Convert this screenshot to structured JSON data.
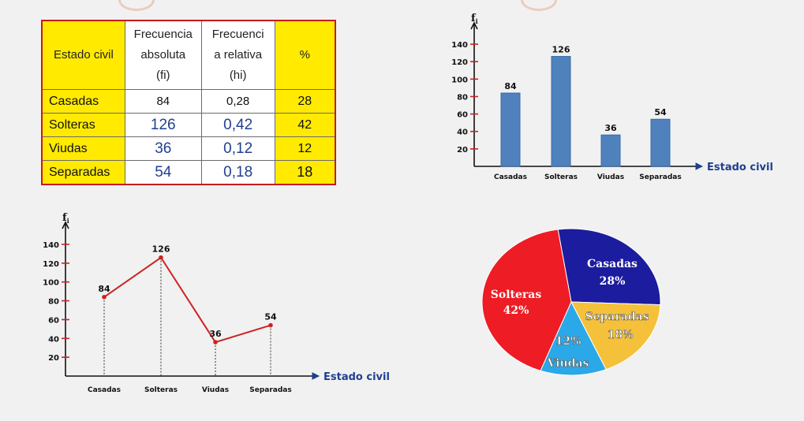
{
  "table": {
    "headers": [
      "Estado civil",
      "Frecuencia absoluta (fi)",
      "Frecuenci a relativa (hi)",
      "%"
    ],
    "header_lines": [
      [
        "Estado civil"
      ],
      [
        "Frecuencia",
        "absoluta",
        "(fi)"
      ],
      [
        "Frecuenci",
        "a relativa",
        "(hi)"
      ],
      [
        "%"
      ]
    ],
    "rows": [
      {
        "estado": "Casadas",
        "fi": "84",
        "hi": "0,28",
        "pct": "28"
      },
      {
        "estado": "Solteras",
        "fi": "126",
        "hi": "0,42",
        "pct": "42"
      },
      {
        "estado": "Viudas",
        "fi": "36",
        "hi": "0,12",
        "pct": "12"
      },
      {
        "estado": "Separadas",
        "fi": "54",
        "hi": "0,18",
        "pct": "18"
      }
    ]
  },
  "chart_data": [
    {
      "type": "bar",
      "categories": [
        "Casadas",
        "Solteras",
        "Viudas",
        "Separadas"
      ],
      "values": [
        84,
        126,
        36,
        54
      ],
      "data_labels": [
        "84",
        "126",
        "36",
        "54"
      ],
      "title": "",
      "xlabel": "Estado civil",
      "ylabel": "fi",
      "ylim": [
        0,
        150
      ],
      "yticks": [
        20,
        40,
        60,
        80,
        100,
        120,
        140
      ],
      "grid": false,
      "color": "#4f81bd"
    },
    {
      "type": "line",
      "categories": [
        "Casadas",
        "Solteras",
        "Viudas",
        "Separadas"
      ],
      "values": [
        84,
        126,
        36,
        54
      ],
      "data_labels": [
        "84",
        "126",
        "36",
        "54"
      ],
      "title": "",
      "xlabel": "Estado civil",
      "ylabel": "fi",
      "ylim": [
        0,
        150
      ],
      "yticks": [
        20,
        40,
        60,
        80,
        100,
        120,
        140
      ],
      "grid": false,
      "color": "#cc2222"
    },
    {
      "type": "pie",
      "slices": [
        {
          "label": "Casadas",
          "pct_label": "28%",
          "value": 28,
          "color": "#1c1c9e"
        },
        {
          "label": "Separadas",
          "pct_label": "18%",
          "value": 18,
          "color": "#f5c13a"
        },
        {
          "label": "Viudas",
          "pct_label": "12%",
          "value": 12,
          "color": "#2aa8e8"
        },
        {
          "label": "Solteras",
          "pct_label": "42%",
          "value": 42,
          "color": "#ee1c24"
        }
      ]
    }
  ]
}
